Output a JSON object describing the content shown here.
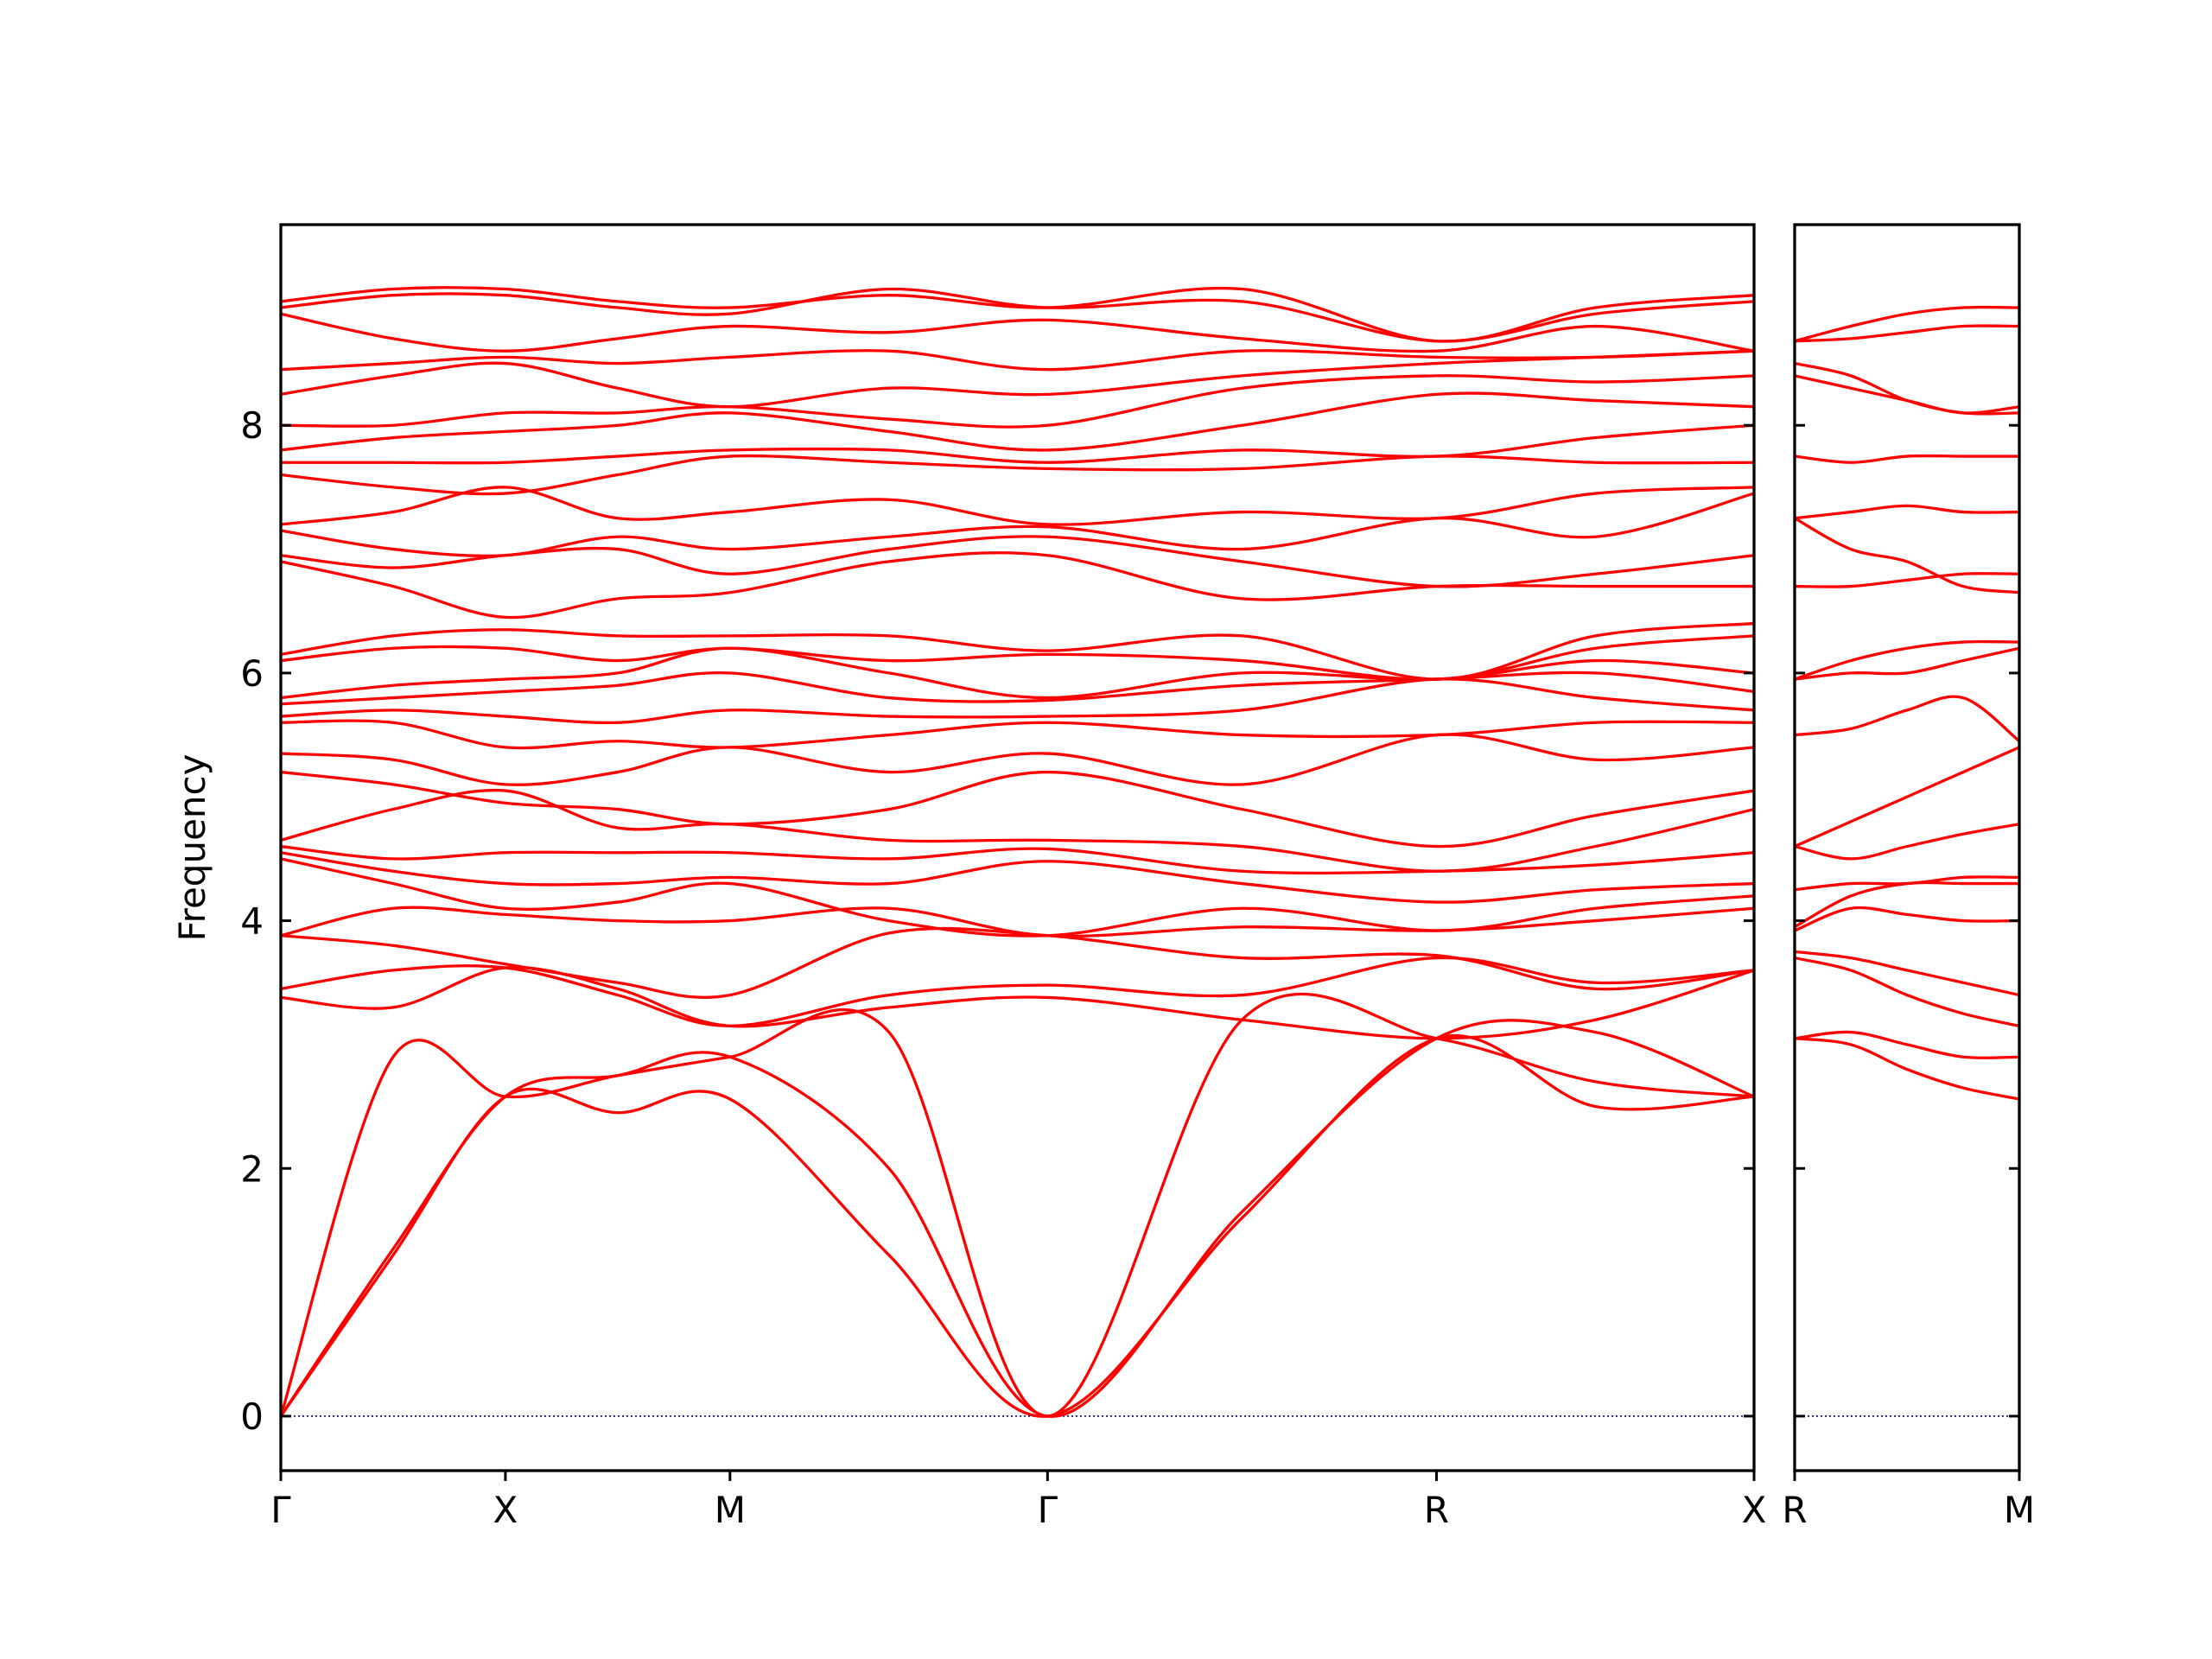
{
  "chart_data": [
    {
      "type": "line",
      "ylabel": "Frequency",
      "x": [
        0,
        0.25,
        0.5,
        0.75,
        1.0,
        1.354,
        1.707,
        2.14,
        2.573,
        2.927,
        3.28
      ],
      "xlim": [
        0,
        3.28
      ],
      "ylim": [
        -0.44,
        9.62
      ],
      "xticks": [
        {
          "value": 0,
          "label": "Γ"
        },
        {
          "value": 0.5,
          "label": "X"
        },
        {
          "value": 1.0,
          "label": "M"
        },
        {
          "value": 1.707,
          "label": "Γ"
        },
        {
          "value": 2.573,
          "label": "R"
        },
        {
          "value": 3.28,
          "label": "X"
        }
      ],
      "yticks": [
        0,
        2,
        4,
        6,
        8
      ],
      "hlines": [
        {
          "value": 0,
          "color": "#00008b"
        }
      ],
      "series": [
        {
          "color": "#ff0000",
          "values": [
            0,
            1.3,
            2.58,
            2.45,
            2.56,
            1.3,
            0,
            1.6,
            3.05,
            2.5,
            2.58
          ]
        },
        {
          "color": "#ff0000",
          "values": [
            0,
            1.35,
            2.58,
            2.75,
            2.9,
            2.0,
            0,
            1.65,
            3.05,
            3.1,
            2.58
          ]
        },
        {
          "color": "#ff0000",
          "values": [
            0,
            2.9,
            2.58,
            2.75,
            2.9,
            3.1,
            0,
            3.2,
            3.05,
            2.7,
            2.58
          ]
        },
        {
          "color": "#ff0000",
          "values": [
            3.38,
            3.3,
            3.62,
            3.45,
            3.15,
            3.3,
            3.38,
            3.2,
            3.05,
            3.2,
            3.6
          ]
        },
        {
          "color": "#ff0000",
          "values": [
            3.45,
            3.6,
            3.62,
            3.4,
            3.15,
            3.4,
            3.48,
            3.4,
            3.7,
            3.5,
            3.6
          ]
        },
        {
          "color": "#ff0000",
          "values": [
            3.88,
            3.8,
            3.65,
            3.5,
            3.4,
            3.9,
            3.88,
            3.7,
            3.72,
            3.45,
            3.6
          ]
        },
        {
          "color": "#ff0000",
          "values": [
            3.88,
            4.1,
            4.05,
            4.0,
            4.0,
            4.1,
            3.88,
            3.95,
            3.92,
            4.0,
            4.1
          ]
        },
        {
          "color": "#ff0000",
          "values": [
            4.5,
            4.3,
            4.1,
            4.15,
            4.3,
            4.0,
            3.88,
            4.1,
            3.92,
            4.1,
            4.2
          ]
        },
        {
          "color": "#ff0000",
          "values": [
            4.55,
            4.4,
            4.3,
            4.3,
            4.35,
            4.3,
            4.48,
            4.3,
            4.15,
            4.25,
            4.3
          ]
        },
        {
          "color": "#ff0000",
          "values": [
            4.6,
            4.5,
            4.55,
            4.55,
            4.55,
            4.5,
            4.58,
            4.4,
            4.4,
            4.45,
            4.55
          ]
        },
        {
          "color": "#ff0000",
          "values": [
            4.65,
            4.9,
            5.05,
            4.75,
            4.78,
            4.65,
            4.65,
            4.6,
            4.4,
            4.6,
            4.9
          ]
        },
        {
          "color": "#ff0000",
          "values": [
            5.2,
            5.1,
            4.95,
            4.9,
            4.78,
            4.9,
            5.2,
            4.9,
            4.6,
            4.85,
            5.05
          ]
        },
        {
          "color": "#ff0000",
          "values": [
            5.35,
            5.3,
            5.1,
            5.2,
            5.4,
            5.2,
            5.35,
            5.1,
            5.5,
            5.3,
            5.4
          ]
        },
        {
          "color": "#ff0000",
          "values": [
            5.6,
            5.6,
            5.4,
            5.45,
            5.4,
            5.5,
            5.6,
            5.5,
            5.5,
            5.6,
            5.6
          ]
        },
        {
          "color": "#ff0000",
          "values": [
            5.65,
            5.7,
            5.65,
            5.6,
            5.7,
            5.65,
            5.65,
            5.7,
            5.95,
            5.8,
            5.7
          ]
        },
        {
          "color": "#ff0000",
          "values": [
            5.75,
            5.8,
            5.85,
            5.9,
            6.0,
            5.8,
            5.78,
            5.9,
            5.95,
            6.0,
            5.85
          ]
        },
        {
          "color": "#ff0000",
          "values": [
            5.8,
            5.9,
            5.95,
            6.0,
            6.2,
            6.0,
            5.8,
            6.0,
            5.95,
            6.1,
            6.0
          ]
        },
        {
          "color": "#ff0000",
          "values": [
            6.1,
            6.2,
            6.2,
            6.1,
            6.2,
            6.1,
            6.15,
            6.1,
            5.95,
            6.2,
            6.3
          ]
        },
        {
          "color": "#ff0000",
          "values": [
            6.15,
            6.3,
            6.35,
            6.3,
            6.3,
            6.3,
            6.18,
            6.3,
            5.95,
            6.3,
            6.4
          ]
        },
        {
          "color": "#ff0000",
          "values": [
            6.9,
            6.7,
            6.45,
            6.6,
            6.65,
            6.9,
            6.95,
            6.6,
            6.7,
            6.7,
            6.7
          ]
        },
        {
          "color": "#ff0000",
          "values": [
            6.95,
            6.85,
            6.95,
            7.0,
            6.8,
            7.0,
            7.1,
            6.9,
            6.7,
            6.8,
            6.95
          ]
        },
        {
          "color": "#ff0000",
          "values": [
            7.15,
            7.0,
            6.95,
            7.1,
            7.0,
            7.1,
            7.18,
            7.0,
            7.25,
            7.1,
            7.45
          ]
        },
        {
          "color": "#ff0000",
          "values": [
            7.2,
            7.3,
            7.5,
            7.25,
            7.3,
            7.4,
            7.2,
            7.3,
            7.25,
            7.45,
            7.5
          ]
        },
        {
          "color": "#ff0000",
          "values": [
            7.6,
            7.5,
            7.45,
            7.6,
            7.75,
            7.7,
            7.65,
            7.65,
            7.75,
            7.7,
            7.7
          ]
        },
        {
          "color": "#ff0000",
          "values": [
            7.7,
            7.7,
            7.7,
            7.75,
            7.8,
            7.8,
            7.7,
            7.8,
            7.75,
            7.9,
            8.0
          ]
        },
        {
          "color": "#ff0000",
          "values": [
            7.8,
            7.9,
            7.95,
            8.0,
            8.1,
            7.95,
            7.8,
            8.0,
            8.25,
            8.2,
            8.15
          ]
        },
        {
          "color": "#ff0000",
          "values": [
            8.0,
            8.0,
            8.1,
            8.1,
            8.15,
            8.05,
            8.0,
            8.3,
            8.4,
            8.35,
            8.4
          ]
        },
        {
          "color": "#ff0000",
          "values": [
            8.25,
            8.4,
            8.5,
            8.3,
            8.15,
            8.3,
            8.25,
            8.4,
            8.5,
            8.55,
            8.6
          ]
        },
        {
          "color": "#ff0000",
          "values": [
            8.45,
            8.5,
            8.55,
            8.5,
            8.55,
            8.6,
            8.45,
            8.6,
            8.55,
            8.55,
            8.6
          ]
        },
        {
          "color": "#ff0000",
          "values": [
            8.9,
            8.7,
            8.6,
            8.7,
            8.8,
            8.75,
            8.85,
            8.7,
            8.6,
            8.8,
            8.6
          ]
        },
        {
          "color": "#ff0000",
          "values": [
            8.95,
            9.05,
            9.05,
            8.95,
            8.9,
            9.1,
            8.95,
            9.0,
            8.68,
            8.9,
            9.0
          ]
        },
        {
          "color": "#ff0000",
          "values": [
            9.0,
            9.1,
            9.1,
            9.0,
            8.95,
            9.05,
            8.95,
            9.1,
            8.68,
            8.95,
            9.05
          ]
        }
      ]
    },
    {
      "type": "line",
      "x": [
        0,
        0.125,
        0.25,
        0.375,
        0.5
      ],
      "xlim": [
        0,
        0.5
      ],
      "ylim": [
        -0.44,
        9.62
      ],
      "xticks": [
        {
          "value": 0,
          "label": "R"
        },
        {
          "value": 0.5,
          "label": "M"
        }
      ],
      "yticks": [
        0,
        2,
        4,
        6,
        8
      ],
      "hlines": [
        {
          "value": 0,
          "color": "#00008b"
        }
      ],
      "series": [
        {
          "color": "#ff0000",
          "values": [
            3.05,
            3.0,
            2.8,
            2.65,
            2.56
          ]
        },
        {
          "color": "#ff0000",
          "values": [
            3.05,
            3.1,
            3.0,
            2.9,
            2.9
          ]
        },
        {
          "color": "#ff0000",
          "values": [
            3.7,
            3.6,
            3.4,
            3.25,
            3.15
          ]
        },
        {
          "color": "#ff0000",
          "values": [
            3.75,
            3.7,
            3.6,
            3.5,
            3.4
          ]
        },
        {
          "color": "#ff0000",
          "values": [
            3.92,
            4.1,
            4.05,
            4.0,
            4.0
          ]
        },
        {
          "color": "#ff0000",
          "values": [
            3.95,
            4.2,
            4.3,
            4.3,
            4.3
          ]
        },
        {
          "color": "#ff0000",
          "values": [
            4.25,
            4.3,
            4.3,
            4.35,
            4.35
          ]
        },
        {
          "color": "#ff0000",
          "values": [
            4.6,
            4.5,
            4.6,
            4.7,
            4.78
          ]
        },
        {
          "color": "#ff0000",
          "values": [
            4.6,
            4.8,
            5.0,
            5.2,
            5.4
          ]
        },
        {
          "color": "#ff0000",
          "values": [
            5.5,
            5.55,
            5.7,
            5.8,
            5.45
          ]
        },
        {
          "color": "#ff0000",
          "values": [
            5.95,
            6.0,
            6.0,
            6.1,
            6.2
          ]
        },
        {
          "color": "#ff0000",
          "values": [
            5.95,
            6.1,
            6.2,
            6.25,
            6.25
          ]
        },
        {
          "color": "#ff0000",
          "values": [
            6.7,
            6.7,
            6.75,
            6.8,
            6.8
          ]
        },
        {
          "color": "#ff0000",
          "values": [
            7.25,
            7.0,
            6.9,
            6.7,
            6.65
          ]
        },
        {
          "color": "#ff0000",
          "values": [
            7.25,
            7.3,
            7.35,
            7.3,
            7.3
          ]
        },
        {
          "color": "#ff0000",
          "values": [
            7.75,
            7.7,
            7.75,
            7.75,
            7.75
          ]
        },
        {
          "color": "#ff0000",
          "values": [
            8.4,
            8.3,
            8.2,
            8.1,
            8.15
          ]
        },
        {
          "color": "#ff0000",
          "values": [
            8.5,
            8.4,
            8.2,
            8.1,
            8.1
          ]
        },
        {
          "color": "#ff0000",
          "values": [
            8.68,
            8.7,
            8.75,
            8.8,
            8.8
          ]
        },
        {
          "color": "#ff0000",
          "values": [
            8.68,
            8.8,
            8.9,
            8.95,
            8.95
          ]
        }
      ]
    }
  ]
}
